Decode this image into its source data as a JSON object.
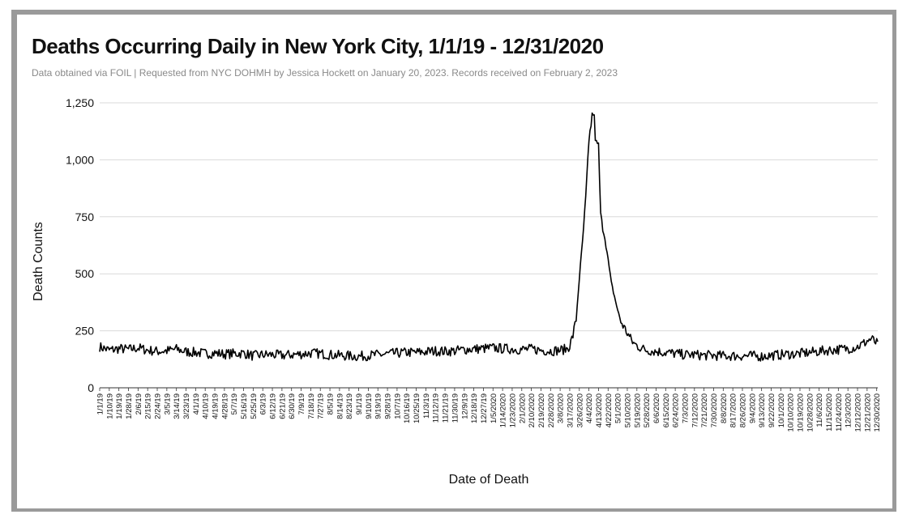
{
  "chart_data": {
    "type": "line",
    "title": "Deaths Occurring Daily in New York City, 1/1/19 - 12/31/2020",
    "subtitle": "Data obtained via FOIL | Requested from NYC DOHMH by Jessica Hockett on January 20, 2023. Records received on February 2, 2023",
    "xlabel": "Date of Death",
    "ylabel": "Death Counts",
    "ylim": [
      0,
      1250
    ],
    "yticks": [
      {
        "value": 0,
        "label": "0"
      },
      {
        "value": 250,
        "label": "250"
      },
      {
        "value": 500,
        "label": "500"
      },
      {
        "value": 750,
        "label": "750"
      },
      {
        "value": 1000,
        "label": "1,000"
      },
      {
        "value": 1250,
        "label": "1,250"
      }
    ],
    "grid": true,
    "x_start": "2019-01-01",
    "x_end": "2020-12-31",
    "x_tick_labels": [
      "1/1/19",
      "1/10/19",
      "1/19/19",
      "1/28/19",
      "2/6/19",
      "2/15/19",
      "2/24/19",
      "3/5/19",
      "3/14/19",
      "3/23/19",
      "4/1/19",
      "4/10/19",
      "4/19/19",
      "4/28/19",
      "5/7/19",
      "5/16/19",
      "5/25/19",
      "6/3/19",
      "6/12/19",
      "6/21/19",
      "6/30/19",
      "7/9/19",
      "7/18/19",
      "7/27/19",
      "8/5/19",
      "8/14/19",
      "8/23/19",
      "9/1/19",
      "9/10/19",
      "9/19/19",
      "9/28/19",
      "10/7/19",
      "10/16/19",
      "10/25/19",
      "11/3/19",
      "11/12/19",
      "11/21/19",
      "11/30/19",
      "12/9/19",
      "12/18/19",
      "12/27/19",
      "1/5/2020",
      "1/14/2020",
      "1/23/2020",
      "2/1/2020",
      "2/10/2020",
      "2/19/2020",
      "2/28/2020",
      "3/8/2020",
      "3/17/2020",
      "3/26/2020",
      "4/4/2020",
      "4/13/2020",
      "4/22/2020",
      "5/1/2020",
      "5/10/2020",
      "5/19/2020",
      "5/28/2020",
      "6/6/2020",
      "6/15/2020",
      "6/24/2020",
      "7/3/2020",
      "7/12/2020",
      "7/21/2020",
      "7/30/2020",
      "8/8/2020",
      "8/17/2020",
      "8/26/2020",
      "9/4/2020",
      "9/13/2020",
      "9/22/2020",
      "10/1/2020",
      "10/10/2020",
      "10/19/2020",
      "10/28/2020",
      "11/6/2020",
      "11/15/2020",
      "11/24/2020",
      "12/3/2020",
      "12/12/2020",
      "12/21/2020",
      "12/30/2020"
    ],
    "series": [
      {
        "points": [
          [
            "2019-01-01",
            180
          ],
          [
            "2019-01-10",
            165
          ],
          [
            "2019-01-19",
            172
          ],
          [
            "2019-01-28",
            168
          ],
          [
            "2019-02-06",
            175
          ],
          [
            "2019-02-15",
            165
          ],
          [
            "2019-02-24",
            160
          ],
          [
            "2019-03-05",
            162
          ],
          [
            "2019-03-14",
            170
          ],
          [
            "2019-03-23",
            158
          ],
          [
            "2019-04-01",
            155
          ],
          [
            "2019-04-10",
            150
          ],
          [
            "2019-04-19",
            152
          ],
          [
            "2019-04-28",
            148
          ],
          [
            "2019-05-07",
            150
          ],
          [
            "2019-05-16",
            152
          ],
          [
            "2019-05-25",
            140
          ],
          [
            "2019-06-03",
            145
          ],
          [
            "2019-06-12",
            145
          ],
          [
            "2019-06-21",
            142
          ],
          [
            "2019-06-30",
            145
          ],
          [
            "2019-07-09",
            148
          ],
          [
            "2019-07-18",
            152
          ],
          [
            "2019-07-27",
            150
          ],
          [
            "2019-08-05",
            145
          ],
          [
            "2019-08-14",
            142
          ],
          [
            "2019-08-23",
            140
          ],
          [
            "2019-09-01",
            138
          ],
          [
            "2019-09-10",
            142
          ],
          [
            "2019-09-19",
            145
          ],
          [
            "2019-09-28",
            148
          ],
          [
            "2019-10-07",
            152
          ],
          [
            "2019-10-16",
            155
          ],
          [
            "2019-10-25",
            155
          ],
          [
            "2019-11-03",
            158
          ],
          [
            "2019-11-12",
            162
          ],
          [
            "2019-11-21",
            160
          ],
          [
            "2019-11-30",
            162
          ],
          [
            "2019-12-09",
            168
          ],
          [
            "2019-12-18",
            170
          ],
          [
            "2019-12-27",
            172
          ],
          [
            "2020-01-05",
            175
          ],
          [
            "2020-01-14",
            172
          ],
          [
            "2020-01-23",
            170
          ],
          [
            "2020-02-01",
            168
          ],
          [
            "2020-02-10",
            170
          ],
          [
            "2020-02-19",
            165
          ],
          [
            "2020-02-28",
            162
          ],
          [
            "2020-03-08",
            165
          ],
          [
            "2020-03-14",
            170
          ],
          [
            "2020-03-17",
            185
          ],
          [
            "2020-03-20",
            230
          ],
          [
            "2020-03-23",
            300
          ],
          [
            "2020-03-26",
            480
          ],
          [
            "2020-03-29",
            640
          ],
          [
            "2020-04-01",
            830
          ],
          [
            "2020-04-03",
            1000
          ],
          [
            "2020-04-05",
            1120
          ],
          [
            "2020-04-07",
            1195
          ],
          [
            "2020-04-08",
            1205
          ],
          [
            "2020-04-09",
            1180
          ],
          [
            "2020-04-10",
            1100
          ],
          [
            "2020-04-11",
            1070
          ],
          [
            "2020-04-13",
            1060
          ],
          [
            "2020-04-15",
            760
          ],
          [
            "2020-04-17",
            700
          ],
          [
            "2020-04-19",
            660
          ],
          [
            "2020-04-22",
            560
          ],
          [
            "2020-04-25",
            460
          ],
          [
            "2020-04-28",
            400
          ],
          [
            "2020-05-01",
            340
          ],
          [
            "2020-05-04",
            290
          ],
          [
            "2020-05-07",
            265
          ],
          [
            "2020-05-10",
            240
          ],
          [
            "2020-05-13",
            215
          ],
          [
            "2020-05-16",
            195
          ],
          [
            "2020-05-19",
            185
          ],
          [
            "2020-05-25",
            170
          ],
          [
            "2020-05-28",
            165
          ],
          [
            "2020-06-06",
            160
          ],
          [
            "2020-06-15",
            155
          ],
          [
            "2020-06-24",
            150
          ],
          [
            "2020-07-03",
            145
          ],
          [
            "2020-07-12",
            145
          ],
          [
            "2020-07-21",
            142
          ],
          [
            "2020-07-30",
            142
          ],
          [
            "2020-08-08",
            140
          ],
          [
            "2020-08-17",
            140
          ],
          [
            "2020-08-26",
            140
          ],
          [
            "2020-09-04",
            140
          ],
          [
            "2020-09-13",
            138
          ],
          [
            "2020-09-22",
            142
          ],
          [
            "2020-10-01",
            145
          ],
          [
            "2020-10-10",
            148
          ],
          [
            "2020-10-19",
            150
          ],
          [
            "2020-10-28",
            155
          ],
          [
            "2020-11-06",
            160
          ],
          [
            "2020-11-15",
            165
          ],
          [
            "2020-11-24",
            168
          ],
          [
            "2020-12-03",
            172
          ],
          [
            "2020-12-12",
            180
          ],
          [
            "2020-12-18",
            195
          ],
          [
            "2020-12-21",
            205
          ],
          [
            "2020-12-25",
            215
          ],
          [
            "2020-12-30",
            195
          ],
          [
            "2020-12-31",
            192
          ]
        ],
        "color": "#000000"
      }
    ]
  }
}
